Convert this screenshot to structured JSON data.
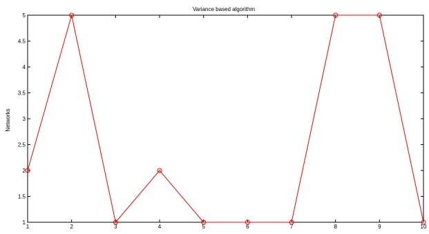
{
  "chart_data": {
    "type": "line",
    "title": "Variance based algorithm",
    "xlabel": "",
    "ylabel": "Networks",
    "x": [
      1,
      2,
      3,
      4,
      5,
      6,
      7,
      8,
      9,
      10
    ],
    "xlim": [
      1,
      10
    ],
    "ylim": [
      1,
      5
    ],
    "xticks": [
      "1",
      "2",
      "3",
      "4",
      "5",
      "6",
      "7",
      "8",
      "9",
      "10"
    ],
    "yticks": [
      "1",
      "1.5",
      "2",
      "2.5",
      "3",
      "3.5",
      "4",
      "4.5",
      "5"
    ],
    "grid": false,
    "legend": "none",
    "series": [
      {
        "values": [
          2,
          5,
          1,
          2,
          1,
          1,
          1,
          5,
          5,
          1
        ],
        "color": "#ff0000",
        "marker": "circle"
      }
    ]
  }
}
